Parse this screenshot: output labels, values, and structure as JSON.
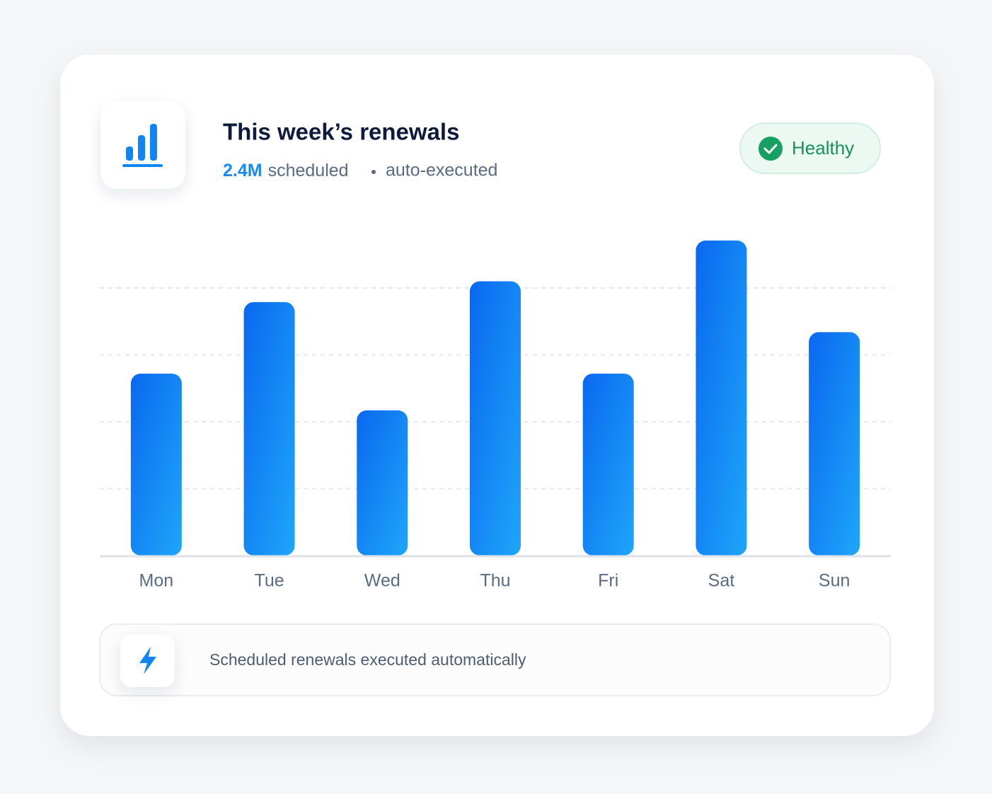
{
  "chart_data": {
    "type": "bar",
    "title": "This week’s renewals",
    "subtitle": {
      "highlight": "2.4M",
      "text": "scheduled",
      "detail": "auto-executed"
    },
    "status": "Healthy",
    "note": "Scheduled renewals executed automatically",
    "categories": [
      "Mon",
      "Tue",
      "Wed",
      "Thu",
      "Fri",
      "Sat",
      "Sun"
    ],
    "values": [
      2.72,
      3.79,
      2.17,
      4.1,
      2.72,
      4.71,
      3.34
    ],
    "color": "#0b6ef2",
    "ylim": [
      0,
      5
    ],
    "yticks": [
      1,
      2,
      3,
      4
    ],
    "grid": true
  }
}
